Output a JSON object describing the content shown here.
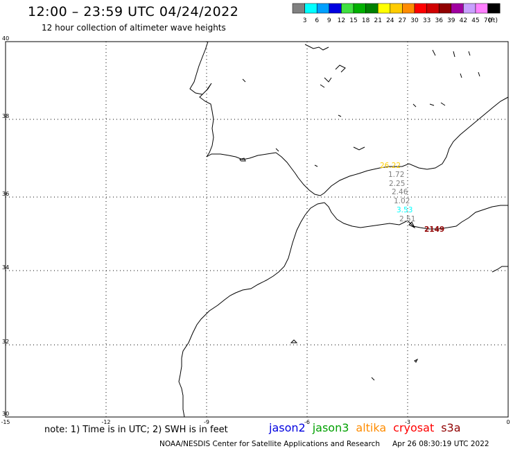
{
  "title": "12:00 – 23:59 UTC 04/24/2022",
  "subtitle": "12 hour collection of altimeter wave heights",
  "legend": {
    "colors": [
      "#808080",
      "#00ffff",
      "#00a0ff",
      "#0000e0",
      "#40e040",
      "#00b000",
      "#008000",
      "#ffff00",
      "#ffcc00",
      "#ff8c00",
      "#ff0000",
      "#d00000",
      "#900000",
      "#a000a0",
      "#c8a0ff",
      "#ff80ff",
      "#000000"
    ],
    "labels": [
      "3",
      "6",
      "9",
      "12",
      "15",
      "18",
      "21",
      "24",
      "27",
      "30",
      "33",
      "36",
      "39",
      "42",
      "45",
      "70"
    ],
    "unit": "(ft)"
  },
  "axes": {
    "lat_labels": [
      "40",
      "38",
      "36",
      "34",
      "32",
      "30"
    ],
    "lon_labels": [
      "-15",
      "-12",
      "-9",
      "-6",
      "-3",
      "0"
    ]
  },
  "observations": [
    {
      "value": "26.22",
      "color": "#ffcc00"
    },
    {
      "value": "1.72",
      "color": "#808080"
    },
    {
      "value": "2.25",
      "color": "#808080"
    },
    {
      "value": "2.46",
      "color": "#808080"
    },
    {
      "value": "1.02",
      "color": "#808080"
    },
    {
      "value": "3.53",
      "color": "#00ffff"
    },
    {
      "value": "2.51",
      "color": "#808080"
    },
    {
      "value": "2149",
      "color": "#900000"
    }
  ],
  "note": "note: 1) Time is in UTC; 2) SWH is in feet",
  "satellites": [
    {
      "name": "jason2",
      "color": "#0000e0"
    },
    {
      "name": "jason3",
      "color": "#00a000"
    },
    {
      "name": "altika",
      "color": "#ff8c00"
    },
    {
      "name": "cryosat",
      "color": "#ff0000"
    },
    {
      "name": "s3a",
      "color": "#900000"
    }
  ],
  "footer": {
    "credit": "NOAA/NESDIS Center for Satellite Applications and Research",
    "timestamp": "Apr 26 08:30:19 UTC 2022"
  }
}
